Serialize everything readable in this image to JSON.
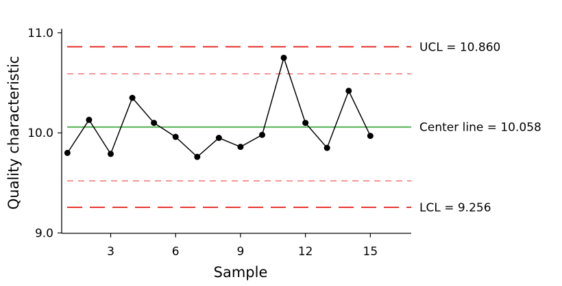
{
  "chart_data": {
    "type": "line",
    "title": "",
    "xlabel": "Sample",
    "ylabel": "Quality characteristic",
    "x": [
      1,
      2,
      3,
      4,
      5,
      6,
      7,
      8,
      9,
      10,
      11,
      12,
      13,
      14,
      15
    ],
    "series": [
      {
        "values": [
          9.8,
          10.13,
          9.79,
          10.35,
          10.1,
          9.96,
          9.76,
          9.95,
          9.86,
          9.98,
          10.75,
          10.1,
          9.85,
          10.42,
          9.97
        ],
        "color": "#000000"
      }
    ],
    "xlim": [
      0,
      16
    ],
    "ylim": [
      9.0,
      11.05
    ],
    "xticks": [
      "3",
      "6",
      "9",
      "12",
      "15"
    ],
    "yticks": [
      "9.0",
      "10.0",
      "11.0"
    ],
    "grid": false,
    "reference_lines": [
      {
        "label": "UCL = 10.860",
        "value": 10.86,
        "style": "long-dash",
        "color": "#e8322c"
      },
      {
        "label": "",
        "value": 10.59,
        "style": "short-dash",
        "color": "#e8322c"
      },
      {
        "label": "Center line = 10.058",
        "value": 10.058,
        "style": "solid",
        "color": "#2ca02c"
      },
      {
        "label": "",
        "value": 9.52,
        "style": "short-dash",
        "color": "#e8322c"
      },
      {
        "label": "LCL = 9.256",
        "value": 9.256,
        "style": "long-dash",
        "color": "#e8322c"
      }
    ]
  }
}
